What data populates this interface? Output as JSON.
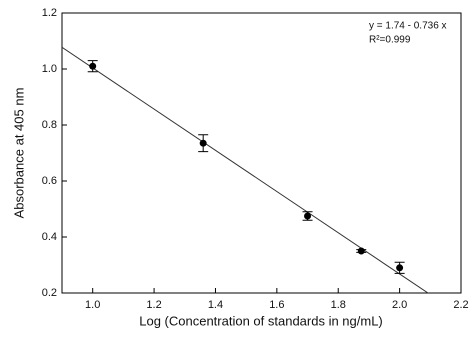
{
  "chart_data": {
    "type": "scatter",
    "x_label": "Log (Concentration of standards in ng/mL)",
    "y_label": "Absorbance at 405 nm",
    "x": [
      1.0,
      1.36,
      1.7,
      1.875,
      2.0
    ],
    "values": [
      1.01,
      0.735,
      0.475,
      0.35,
      0.29
    ],
    "errors": [
      0.02,
      0.03,
      0.015,
      0.005,
      0.02
    ],
    "color": "#000000",
    "fit": {
      "intercept": 1.74,
      "slope": -0.736
    },
    "annotations": [
      "y = 1.74 - 0.736 x",
      "R²=0.999"
    ],
    "xlim": [
      0.9,
      2.2
    ],
    "xticks": [
      {
        "value": 1,
        "label": "1.0"
      },
      1.2,
      1.4,
      1.6,
      1.8,
      {
        "value": 2,
        "label": "2.0"
      },
      2.2
    ],
    "ylim": [
      0.2,
      1.2
    ],
    "yticks": [
      0.2,
      0.4,
      0.6,
      0.8,
      {
        "value": 1,
        "label": "1.0"
      },
      1.2
    ],
    "grid": false
  }
}
